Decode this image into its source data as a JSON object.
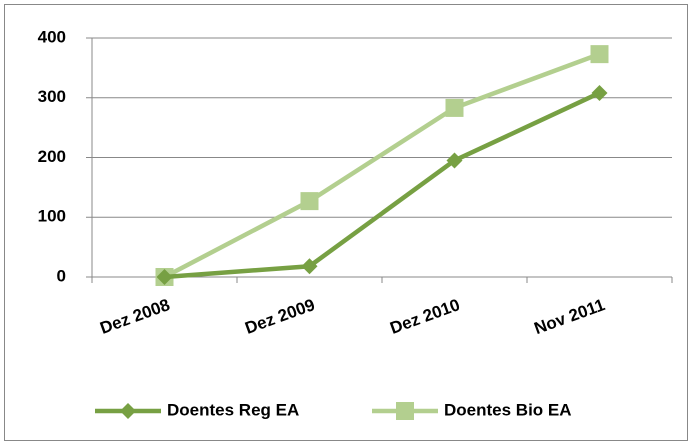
{
  "chart_data": {
    "type": "line",
    "categories": [
      "Dez 2008",
      "Dez 2009",
      "Dez 2010",
      "Nov 2011"
    ],
    "series": [
      {
        "name": "Doentes Reg EA",
        "color": "#77a043",
        "marker": "diamond",
        "values": [
          0,
          18,
          195,
          308
        ]
      },
      {
        "name": "Doentes Bio EA",
        "color": "#b3cf8f",
        "marker": "square",
        "values": [
          0,
          127,
          283,
          373
        ]
      }
    ],
    "ylim": [
      0,
      400
    ],
    "yticks": [
      0,
      100,
      200,
      300,
      400
    ],
    "grid": true,
    "legend": "bottom"
  }
}
